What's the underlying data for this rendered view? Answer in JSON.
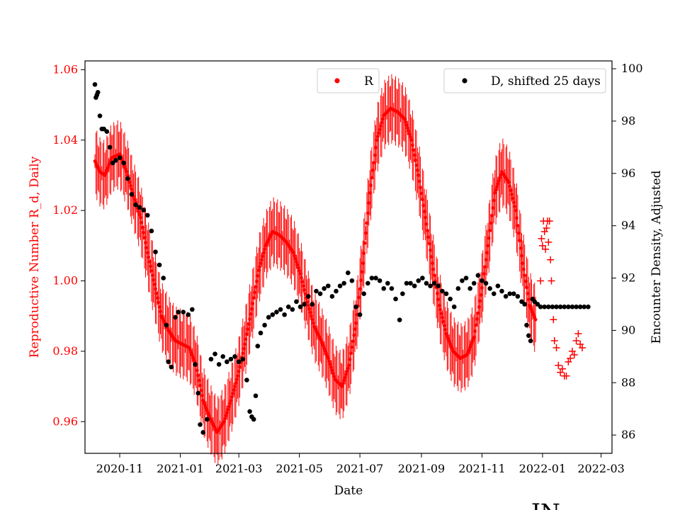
{
  "chart_data": {
    "type": "scatter",
    "xlabel": "Date",
    "ylabel_left": "Reproductive Number R_d, Daily",
    "ylabel_right": "Encounter Density, Adjusted",
    "xlim": [
      "2020-09-27",
      "2022-03-12"
    ],
    "ylim_left": [
      0.951,
      1.0625
    ],
    "ylim_right": [
      85.3,
      100.3
    ],
    "x_ticks": [
      "2020-11",
      "2021-01",
      "2021-03",
      "2021-05",
      "2021-07",
      "2021-09",
      "2021-11",
      "2022-01",
      "2022-03"
    ],
    "y_ticks_left": [
      "0.96",
      "0.98",
      "1.00",
      "1.02",
      "1.04",
      "1.06"
    ],
    "y_ticks_right": [
      "86",
      "88",
      "90",
      "92",
      "94",
      "96",
      "98",
      "100"
    ],
    "colors": {
      "R": "#ff0000",
      "D": "#000000"
    },
    "legend": [
      {
        "label": "R",
        "color": "#ff0000",
        "marker": "dot",
        "placement": "top-center"
      },
      {
        "label": "D, shifted 25 days",
        "color": "#000000",
        "marker": "dot",
        "placement": "top-right"
      }
    ],
    "series": [
      {
        "name": "R",
        "axis": "left",
        "errorbars": true,
        "points": [
          [
            "2020-10-07",
            1.034
          ],
          [
            "2020-10-12",
            1.031
          ],
          [
            "2020-10-17",
            1.03
          ],
          [
            "2020-10-24",
            1.035
          ],
          [
            "2020-11-01",
            1.036
          ],
          [
            "2020-11-08",
            1.031
          ],
          [
            "2020-11-15",
            1.024
          ],
          [
            "2020-11-22",
            1.018
          ],
          [
            "2020-11-29",
            1.008
          ],
          [
            "2020-12-06",
            0.999
          ],
          [
            "2020-12-13",
            0.99
          ],
          [
            "2020-12-20",
            0.986
          ],
          [
            "2020-12-27",
            0.983
          ],
          [
            "2021-01-03",
            0.982
          ],
          [
            "2021-01-10",
            0.981
          ],
          [
            "2021-01-17",
            0.976
          ],
          [
            "2021-01-24",
            0.966
          ],
          [
            "2021-01-31",
            0.961
          ],
          [
            "2021-02-07",
            0.957
          ],
          [
            "2021-02-14",
            0.96
          ],
          [
            "2021-02-21",
            0.966
          ],
          [
            "2021-02-28",
            0.973
          ],
          [
            "2021-03-07",
            0.982
          ],
          [
            "2021-03-14",
            0.992
          ],
          [
            "2021-03-21",
            1.003
          ],
          [
            "2021-03-28",
            1.01
          ],
          [
            "2021-04-04",
            1.014
          ],
          [
            "2021-04-11",
            1.013
          ],
          [
            "2021-04-18",
            1.011
          ],
          [
            "2021-04-25",
            1.008
          ],
          [
            "2021-05-02",
            1.002
          ],
          [
            "2021-05-09",
            0.994
          ],
          [
            "2021-05-16",
            0.987
          ],
          [
            "2021-05-23",
            0.983
          ],
          [
            "2021-05-30",
            0.978
          ],
          [
            "2021-06-06",
            0.972
          ],
          [
            "2021-06-13",
            0.97
          ],
          [
            "2021-06-20",
            0.976
          ],
          [
            "2021-06-27",
            0.988
          ],
          [
            "2021-07-04",
            1.005
          ],
          [
            "2021-07-11",
            1.025
          ],
          [
            "2021-07-18",
            1.04
          ],
          [
            "2021-07-25",
            1.047
          ],
          [
            "2021-08-01",
            1.049
          ],
          [
            "2021-08-08",
            1.048
          ],
          [
            "2021-08-15",
            1.046
          ],
          [
            "2021-08-22",
            1.04
          ],
          [
            "2021-08-29",
            1.03
          ],
          [
            "2021-09-05",
            1.018
          ],
          [
            "2021-09-12",
            1.005
          ],
          [
            "2021-09-19",
            0.993
          ],
          [
            "2021-09-26",
            0.985
          ],
          [
            "2021-10-03",
            0.98
          ],
          [
            "2021-10-10",
            0.978
          ],
          [
            "2021-10-17",
            0.979
          ],
          [
            "2021-10-24",
            0.984
          ],
          [
            "2021-10-31",
            0.996
          ],
          [
            "2021-11-07",
            1.01
          ],
          [
            "2021-11-14",
            1.025
          ],
          [
            "2021-11-21",
            1.031
          ],
          [
            "2021-11-28",
            1.028
          ],
          [
            "2021-12-05",
            1.02
          ],
          [
            "2021-12-12",
            1.005
          ],
          [
            "2021-12-19",
            0.993
          ],
          [
            "2021-12-25",
            0.989
          ]
        ],
        "crosses": [
          [
            "2021-12-30",
            1.0
          ],
          [
            "2021-12-31",
            1.012
          ],
          [
            "2022-01-01",
            1.01
          ],
          [
            "2022-01-02",
            1.017
          ],
          [
            "2022-01-03",
            1.014
          ],
          [
            "2022-01-04",
            1.009
          ],
          [
            "2022-01-05",
            1.015
          ],
          [
            "2022-01-06",
            1.017
          ],
          [
            "2022-01-07",
            1.011
          ],
          [
            "2022-01-08",
            1.017
          ],
          [
            "2022-01-09",
            1.006
          ],
          [
            "2022-01-10",
            1.0
          ],
          [
            "2022-01-12",
            0.989
          ],
          [
            "2022-01-13",
            0.983
          ],
          [
            "2022-01-15",
            0.981
          ],
          [
            "2022-01-17",
            0.976
          ],
          [
            "2022-01-19",
            0.974
          ],
          [
            "2022-01-21",
            0.975
          ],
          [
            "2022-01-23",
            0.973
          ],
          [
            "2022-01-25",
            0.973
          ],
          [
            "2022-01-27",
            0.977
          ],
          [
            "2022-01-29",
            0.978
          ],
          [
            "2022-01-31",
            0.98
          ],
          [
            "2022-02-02",
            0.979
          ],
          [
            "2022-02-04",
            0.983
          ],
          [
            "2022-02-06",
            0.985
          ],
          [
            "2022-02-08",
            0.982
          ],
          [
            "2022-02-10",
            0.981
          ]
        ]
      },
      {
        "name": "D, shifted 25 days",
        "axis": "right",
        "points": [
          [
            "2020-10-07",
            99.4
          ],
          [
            "2020-10-08",
            98.9
          ],
          [
            "2020-10-09",
            99.0
          ],
          [
            "2020-10-10",
            99.1
          ],
          [
            "2020-10-12",
            98.2
          ],
          [
            "2020-10-14",
            97.7
          ],
          [
            "2020-10-16",
            97.7
          ],
          [
            "2020-10-19",
            97.6
          ],
          [
            "2020-10-22",
            97.0
          ],
          [
            "2020-10-25",
            96.4
          ],
          [
            "2020-10-28",
            96.5
          ],
          [
            "2020-11-01",
            96.6
          ],
          [
            "2020-11-05",
            96.4
          ],
          [
            "2020-11-09",
            95.8
          ],
          [
            "2020-11-13",
            95.2
          ],
          [
            "2020-11-17",
            94.8
          ],
          [
            "2020-11-21",
            94.7
          ],
          [
            "2020-11-25",
            94.6
          ],
          [
            "2020-11-29",
            94.4
          ],
          [
            "2020-12-03",
            93.8
          ],
          [
            "2020-12-07",
            93.0
          ],
          [
            "2020-12-11",
            92.5
          ],
          [
            "2020-12-15",
            92.0
          ],
          [
            "2020-12-18",
            90.2
          ],
          [
            "2020-12-20",
            88.8
          ],
          [
            "2020-12-23",
            88.6
          ],
          [
            "2020-12-27",
            90.5
          ],
          [
            "2020-12-30",
            90.7
          ],
          [
            "2021-01-04",
            90.7
          ],
          [
            "2021-01-09",
            90.6
          ],
          [
            "2021-01-13",
            90.8
          ],
          [
            "2021-01-16",
            88.7
          ],
          [
            "2021-01-19",
            87.6
          ],
          [
            "2021-01-21",
            86.4
          ],
          [
            "2021-01-24",
            86.1
          ],
          [
            "2021-01-28",
            86.6
          ],
          [
            "2021-02-01",
            88.9
          ],
          [
            "2021-02-05",
            89.1
          ],
          [
            "2021-02-09",
            88.7
          ],
          [
            "2021-02-13",
            89.0
          ],
          [
            "2021-02-17",
            88.8
          ],
          [
            "2021-02-21",
            88.9
          ],
          [
            "2021-02-25",
            89.0
          ],
          [
            "2021-03-01",
            88.8
          ],
          [
            "2021-03-05",
            88.9
          ],
          [
            "2021-03-09",
            88.1
          ],
          [
            "2021-03-12",
            86.9
          ],
          [
            "2021-03-14",
            86.7
          ],
          [
            "2021-03-16",
            86.6
          ],
          [
            "2021-03-18",
            87.5
          ],
          [
            "2021-03-20",
            89.4
          ],
          [
            "2021-03-23",
            89.9
          ],
          [
            "2021-03-27",
            90.2
          ],
          [
            "2021-03-31",
            90.5
          ],
          [
            "2021-04-04",
            90.6
          ],
          [
            "2021-04-08",
            90.7
          ],
          [
            "2021-04-12",
            90.8
          ],
          [
            "2021-04-16",
            90.6
          ],
          [
            "2021-04-20",
            90.9
          ],
          [
            "2021-04-24",
            90.8
          ],
          [
            "2021-04-28",
            91.1
          ],
          [
            "2021-05-02",
            90.9
          ],
          [
            "2021-05-06",
            91.0
          ],
          [
            "2021-05-10",
            91.3
          ],
          [
            "2021-05-14",
            91.0
          ],
          [
            "2021-05-18",
            91.5
          ],
          [
            "2021-05-22",
            91.4
          ],
          [
            "2021-05-26",
            91.6
          ],
          [
            "2021-05-30",
            91.7
          ],
          [
            "2021-06-03",
            91.3
          ],
          [
            "2021-06-07",
            91.5
          ],
          [
            "2021-06-11",
            91.7
          ],
          [
            "2021-06-15",
            91.8
          ],
          [
            "2021-06-19",
            92.2
          ],
          [
            "2021-06-23",
            91.9
          ],
          [
            "2021-06-27",
            90.9
          ],
          [
            "2021-07-01",
            90.6
          ],
          [
            "2021-07-05",
            91.4
          ],
          [
            "2021-07-09",
            91.8
          ],
          [
            "2021-07-13",
            92.0
          ],
          [
            "2021-07-17",
            92.0
          ],
          [
            "2021-07-21",
            91.9
          ],
          [
            "2021-07-25",
            91.6
          ],
          [
            "2021-07-29",
            91.8
          ],
          [
            "2021-08-02",
            91.6
          ],
          [
            "2021-08-06",
            91.2
          ],
          [
            "2021-08-10",
            90.4
          ],
          [
            "2021-08-13",
            91.4
          ],
          [
            "2021-08-17",
            91.8
          ],
          [
            "2021-08-21",
            91.8
          ],
          [
            "2021-08-25",
            91.7
          ],
          [
            "2021-08-29",
            91.9
          ],
          [
            "2021-09-02",
            92.0
          ],
          [
            "2021-09-06",
            91.8
          ],
          [
            "2021-09-10",
            91.7
          ],
          [
            "2021-09-14",
            91.8
          ],
          [
            "2021-09-18",
            91.7
          ],
          [
            "2021-09-22",
            91.5
          ],
          [
            "2021-09-26",
            91.4
          ],
          [
            "2021-09-30",
            91.2
          ],
          [
            "2021-10-04",
            90.9
          ],
          [
            "2021-10-08",
            91.6
          ],
          [
            "2021-10-12",
            91.9
          ],
          [
            "2021-10-16",
            92.0
          ],
          [
            "2021-10-20",
            91.6
          ],
          [
            "2021-10-24",
            91.8
          ],
          [
            "2021-10-28",
            92.1
          ],
          [
            "2021-11-01",
            91.9
          ],
          [
            "2021-11-05",
            91.8
          ],
          [
            "2021-11-09",
            91.6
          ],
          [
            "2021-11-13",
            91.4
          ],
          [
            "2021-11-17",
            91.7
          ],
          [
            "2021-11-21",
            91.5
          ],
          [
            "2021-11-25",
            91.3
          ],
          [
            "2021-11-29",
            91.4
          ],
          [
            "2021-12-03",
            91.4
          ],
          [
            "2021-12-07",
            91.3
          ],
          [
            "2021-12-11",
            91.1
          ],
          [
            "2021-12-14",
            91.0
          ],
          [
            "2021-12-16",
            90.2
          ],
          [
            "2021-12-18",
            89.8
          ],
          [
            "2021-12-20",
            89.6
          ],
          [
            "2021-12-22",
            91.2
          ],
          [
            "2021-12-24",
            91.1
          ],
          [
            "2021-12-27",
            91.0
          ],
          [
            "2021-12-30",
            90.9
          ],
          [
            "2022-01-03",
            90.9
          ],
          [
            "2022-01-07",
            90.9
          ],
          [
            "2022-01-11",
            90.9
          ],
          [
            "2022-01-15",
            90.9
          ],
          [
            "2022-01-19",
            90.9
          ],
          [
            "2022-01-23",
            90.9
          ],
          [
            "2022-01-27",
            90.9
          ],
          [
            "2022-01-31",
            90.9
          ],
          [
            "2022-02-04",
            90.9
          ],
          [
            "2022-02-08",
            90.9
          ],
          [
            "2022-02-12",
            90.9
          ],
          [
            "2022-02-16",
            90.9
          ]
        ]
      }
    ]
  },
  "logo_text": "JN"
}
